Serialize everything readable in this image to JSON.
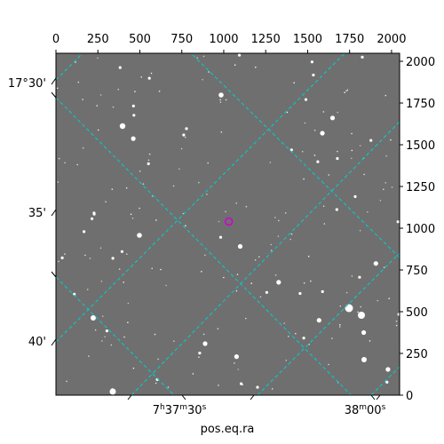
{
  "image_panel": {
    "background": "#6f6f6f",
    "frame_color": "#000000",
    "grid_color": "#00d0d0",
    "marker_color": "#d000d0"
  },
  "top_axis": {
    "ticks": [
      "0",
      "250",
      "500",
      "750",
      "1000",
      "1250",
      "1500",
      "1750",
      "2000"
    ],
    "tick_values": [
      0,
      250,
      500,
      750,
      1000,
      1250,
      1500,
      1750,
      2000
    ],
    "min": 0,
    "max": 2048
  },
  "right_axis": {
    "ticks": [
      "0",
      "250",
      "500",
      "750",
      "1000",
      "1250",
      "1500",
      "1750",
      "2000"
    ],
    "tick_values": [
      0,
      250,
      500,
      750,
      1000,
      1250,
      1500,
      1750,
      2000
    ],
    "min": 0,
    "max": 2048
  },
  "left_axis": {
    "labels": [
      "17°30'",
      "35'",
      "40'"
    ]
  },
  "bottom_axis": {
    "labels": [
      {
        "h": "7",
        "hu": "h",
        "m": "37",
        "mu": "m",
        "s": "30",
        "su": "s"
      },
      {
        "m": "38",
        "mu": "m",
        "s": "00",
        "su": "s"
      }
    ],
    "title": "pos.eq.ra"
  },
  "marker": {
    "x": 1030,
    "y": 1040
  }
}
